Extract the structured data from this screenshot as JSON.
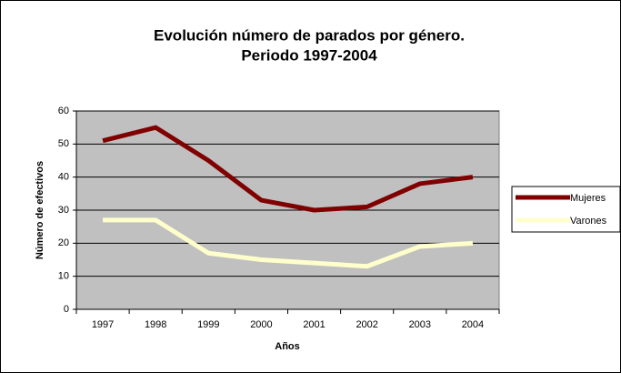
{
  "chart_data": {
    "type": "line",
    "title": [
      "Evolución número de parados por género.",
      "Periodo 1997-2004"
    ],
    "x_label": "Años",
    "y_label": "Número de efectivos",
    "categories": [
      "1997",
      "1998",
      "1999",
      "2000",
      "2001",
      "2002",
      "2003",
      "2004"
    ],
    "series": [
      {
        "name": "Mujeres",
        "color": "#800000",
        "values": [
          51,
          55,
          45,
          33,
          30,
          31,
          38,
          40
        ]
      },
      {
        "name": "Varones",
        "color": "#ffffcc",
        "values": [
          27,
          27,
          17,
          15,
          14,
          13,
          19,
          20
        ]
      }
    ],
    "ylim": [
      0,
      60
    ],
    "yticks": [
      0,
      10,
      20,
      30,
      40,
      50,
      60
    ],
    "grid": true,
    "legend": "right",
    "plot_background": "#c0c0c0"
  }
}
